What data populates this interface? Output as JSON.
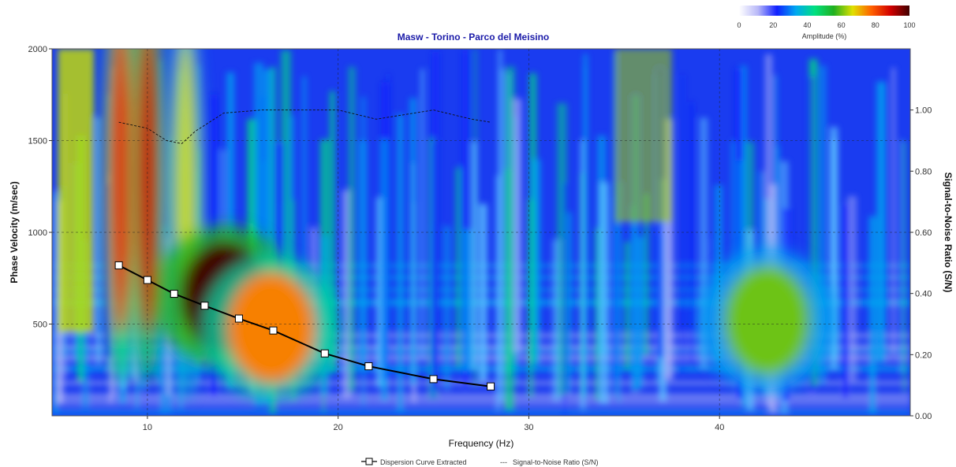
{
  "chart_data": {
    "type": "heatmap",
    "title": "Masw - Torino  - Parco del Meisino",
    "xlabel": "Frequency (Hz)",
    "ylabel": "Phase Velocity (m/sec)",
    "y2label": "Signal-to-Noise Ratio (S/N)",
    "xlim": [
      5,
      50
    ],
    "ylim": [
      0,
      2000
    ],
    "y2lim": [
      0,
      1.2
    ],
    "x_ticks": [
      "10",
      "20",
      "30",
      "40"
    ],
    "y_ticks": [
      "500",
      "1000",
      "1500",
      "2000"
    ],
    "y2_ticks": [
      "0.00",
      "0.20",
      "0.40",
      "0.60",
      "0.80",
      "1.00"
    ],
    "grid": true,
    "colorbar": {
      "label": "Amplitude (%)",
      "ticks": [
        "0",
        "20",
        "40",
        "60",
        "80",
        "100"
      ],
      "colors": [
        "#ffffff",
        "#b8b8f8",
        "#1020ff",
        "#00a8f0",
        "#00e080",
        "#20b020",
        "#e0e000",
        "#ff6000",
        "#d00000",
        "#400000"
      ]
    },
    "legend": {
      "placement": "bottom-center",
      "items": [
        "Dispersion Curve Extracted",
        "Signal-to-Noise Ratio (S/N)"
      ]
    },
    "series": [
      {
        "name": "Dispersion Curve Extracted",
        "x": [
          8.5,
          10.0,
          11.4,
          13.0,
          14.8,
          16.6,
          19.3,
          21.6,
          25.0,
          28.0
        ],
        "y": [
          820,
          740,
          665,
          600,
          530,
          465,
          340,
          270,
          200,
          160
        ]
      },
      {
        "name": "Signal-to-Noise Ratio (S/N)",
        "x": [
          8.5,
          10,
          11,
          11.8,
          12.5,
          14,
          16,
          18,
          20,
          22,
          24,
          25,
          27,
          28
        ],
        "y": [
          0.96,
          0.94,
          0.9,
          0.89,
          0.93,
          0.99,
          1.0,
          1.0,
          1.0,
          0.97,
          0.99,
          1.0,
          0.97,
          0.96
        ]
      }
    ],
    "energy_regions": [
      {
        "x": 8.6,
        "velocity": 1300,
        "amplitude": 85
      },
      {
        "x": 10.0,
        "velocity": 1300,
        "amplitude": 90
      },
      {
        "x": 12.0,
        "velocity": 1200,
        "amplitude": 65
      },
      {
        "x": 14.0,
        "velocity": 650,
        "amplitude": 100
      },
      {
        "x": 16.5,
        "velocity": 480,
        "amplitude": 75
      },
      {
        "x": 42.5,
        "velocity": 520,
        "amplitude": 60
      }
    ]
  }
}
